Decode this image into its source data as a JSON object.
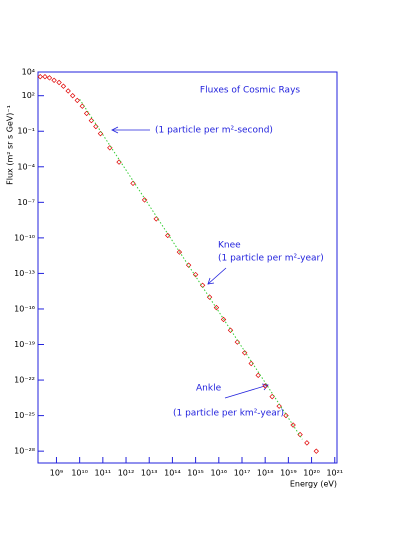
{
  "chart_data": {
    "type": "scatter",
    "title": "Fluxes of Cosmic Rays",
    "x_label": "Energy (eV)",
    "y_label": "Flux (m² sr s GeV)⁻¹",
    "log_x": true,
    "log_y": true,
    "annotations": [
      "(1 particle per m²-second)",
      "Knee",
      "(1 particle per m²-year)",
      "Ankle",
      "(1 particle per km²-year)"
    ],
    "xlim": [
      160000000.0,
      1.25e+21
    ],
    "ylim": [
      1e-29,
      10000.0
    ],
    "xticks": [
      {
        "value": 1000000000.0,
        "label": "10⁹"
      },
      {
        "value": 10000000000.0,
        "label": "10¹⁰"
      },
      {
        "value": 100000000000.0,
        "label": "10¹¹"
      },
      {
        "value": 1000000000000.0,
        "label": "10¹²"
      },
      {
        "value": 10000000000000.0,
        "label": "10¹³"
      },
      {
        "value": 100000000000000.0,
        "label": "10¹⁴"
      },
      {
        "value": 1000000000000000.0,
        "label": "10¹⁵"
      },
      {
        "value": 1e+16,
        "label": "10¹⁶"
      },
      {
        "value": 1e+17,
        "label": "10¹⁷"
      },
      {
        "value": 1e+18,
        "label": "10¹⁸"
      },
      {
        "value": 1e+19,
        "label": "10¹⁹"
      },
      {
        "value": 1e+20,
        "label": "10²⁰"
      },
      {
        "value": 1e+21,
        "label": "10²¹"
      }
    ],
    "yticks": [
      {
        "value": 10000.0,
        "label": "10⁴"
      },
      {
        "value": 100.0,
        "label": "10²"
      },
      {
        "value": 0.1,
        "label": "10⁻¹"
      },
      {
        "value": 0.0001,
        "label": "10⁻⁴"
      },
      {
        "value": 1e-07,
        "label": "10⁻⁷"
      },
      {
        "value": 1e-10,
        "label": "10⁻¹⁰"
      },
      {
        "value": 1e-13,
        "label": "10⁻¹³"
      },
      {
        "value": 1e-16,
        "label": "10⁻¹⁶"
      },
      {
        "value": 1e-19,
        "label": "10⁻¹⁹"
      },
      {
        "value": 1e-22,
        "label": "10⁻²²"
      },
      {
        "value": 1e-25,
        "label": "10⁻²⁵"
      },
      {
        "value": 1e-28,
        "label": "10⁻²⁸"
      }
    ],
    "series": [
      {
        "color": "#e00000",
        "marker": "diamond",
        "x": [
          200000000.0,
          320000000.0,
          500000000.0,
          790000000.0,
          1300000000.0,
          2000000000.0,
          3200000000.0,
          5000000000.0,
          7900000000.0,
          13000000000.0,
          20000000000.0,
          32000000000.0,
          50000000000.0,
          79000000000.0,
          200000000000.0,
          500000000000.0,
          2000000000000.0,
          6300000000000.0,
          20000000000000.0,
          63000000000000.0,
          200000000000000.0,
          500000000000000.0,
          1000000000000000.0,
          2000000000000000.0,
          4000000000000000.0,
          7900000000000000.0,
          1.6e+16,
          3.2e+16,
          6.3e+16,
          1.3e+17,
          2.5e+17,
          5e+17,
          1e+18,
          2e+18,
          4e+18,
          7.9e+18,
          1.6e+19,
          3.2e+19,
          6.3e+19,
          1.6e+20
        ],
        "values": [
          4000.0,
          4000.0,
          3200.0,
          2000.0,
          1300.0,
          630.0,
          250.0,
          100.0,
          40.0,
          13.0,
          3.2,
          0.79,
          0.25,
          0.063,
          0.004,
          0.00025,
          4e-06,
          1.6e-07,
          4e-09,
          1.6e-10,
          6.3e-12,
          5e-13,
          7.9e-14,
          1e-14,
          1e-15,
          1.3e-16,
          1.3e-17,
          1.6e-18,
          1.6e-19,
          2e-20,
          2.5e-21,
          2.5e-22,
          3.2e-23,
          4e-24,
          6.3e-25,
          1e-25,
          1.6e-26,
          2.5e-27,
          5e-28,
          1e-28
        ]
      },
      {
        "color": "#33cc33",
        "style": "dotted",
        "x": [
          10000000000.0,
          4e+19
        ],
        "values": [
          50,
          1e-27
        ]
      }
    ]
  }
}
